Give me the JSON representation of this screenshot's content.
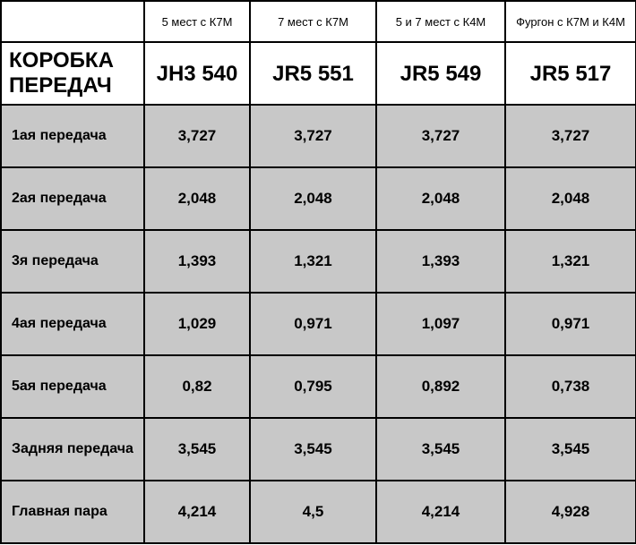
{
  "table": {
    "section_title": "КОРОБКА ПЕРЕДАЧ",
    "variants": [
      "5 мест с К7М",
      "7 мест с К7М",
      "5 и 7 мест с К4М",
      "Фургон с К7М и К4М"
    ],
    "models": [
      "JH3 540",
      "JR5 551",
      "JR5 549",
      "JR5 517"
    ],
    "rows": [
      {
        "label": "1ая передача",
        "values": [
          "3,727",
          "3,727",
          "3,727",
          "3,727"
        ]
      },
      {
        "label": "2ая передача",
        "values": [
          "2,048",
          "2,048",
          "2,048",
          "2,048"
        ]
      },
      {
        "label": "3я передача",
        "values": [
          "1,393",
          "1,321",
          "1,393",
          "1,321"
        ]
      },
      {
        "label": "4ая передача",
        "values": [
          "1,029",
          "0,971",
          "1,097",
          "0,971"
        ]
      },
      {
        "label": "5ая передача",
        "values": [
          "0,82",
          "0,795",
          "0,892",
          "0,738"
        ]
      },
      {
        "label": "Задняя передача",
        "values": [
          "3,545",
          "3,545",
          "3,545",
          "3,545"
        ]
      },
      {
        "label": "Главная пара",
        "values": [
          "4,214",
          "4,5",
          "4,214",
          "4,928"
        ]
      }
    ]
  }
}
